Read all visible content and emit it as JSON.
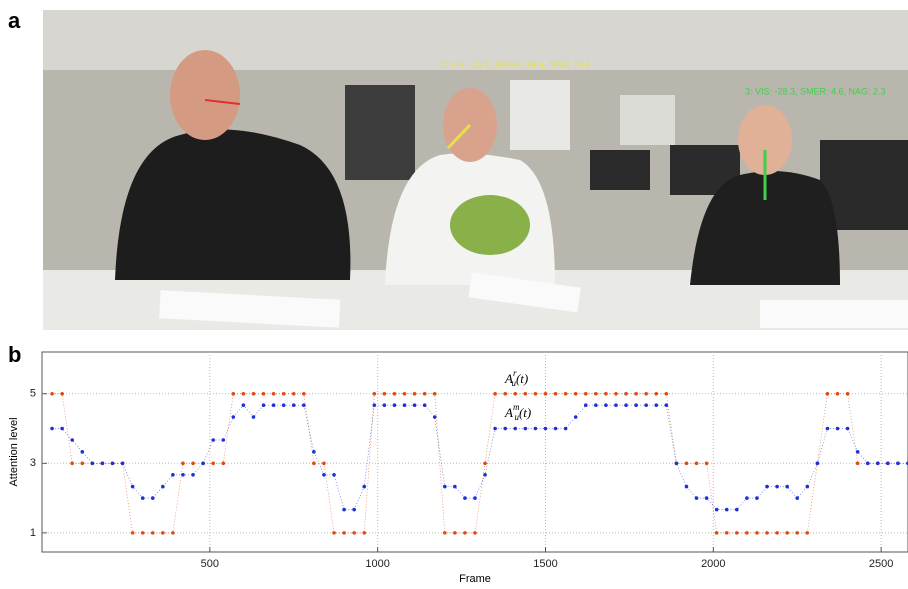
{
  "panel_labels": [
    "a",
    "b"
  ],
  "photo": {
    "overlays": [
      {
        "text": "2: VIS: -13.2,  SMER: 14.6,  NAG: 10.6",
        "color": "#e6e04a"
      },
      {
        "text": "3: VIS: -28.3,  SMER: 4.6,  NAG: 2.3",
        "color": "#3ed04a"
      }
    ]
  },
  "chart_data": {
    "type": "scatter",
    "xlabel": "Frame",
    "ylabel": "Attention level",
    "xlim": [
      0,
      2580
    ],
    "ylim": [
      0.45,
      6.2
    ],
    "xticks": [
      500,
      1000,
      1500,
      2000,
      2500
    ],
    "yticks": [
      1,
      3,
      5
    ],
    "grid": true,
    "x": [
      30,
      60,
      90,
      120,
      150,
      180,
      210,
      240,
      270,
      300,
      330,
      360,
      390,
      420,
      450,
      480,
      510,
      540,
      570,
      600,
      630,
      660,
      690,
      720,
      750,
      780,
      810,
      840,
      870,
      900,
      930,
      960,
      990,
      1020,
      1050,
      1080,
      1110,
      1140,
      1170,
      1200,
      1230,
      1260,
      1290,
      1320,
      1350,
      1380,
      1410,
      1440,
      1470,
      1500,
      1530,
      1560,
      1590,
      1620,
      1650,
      1680,
      1710,
      1740,
      1770,
      1800,
      1830,
      1860,
      1890,
      1920,
      1950,
      1980,
      2010,
      2040,
      2070,
      2100,
      2130,
      2160,
      2190,
      2220,
      2250,
      2280,
      2310,
      2340,
      2370,
      2400,
      2430,
      2460,
      2490,
      2520,
      2550,
      2580
    ],
    "series": [
      {
        "color": "#e04a10",
        "values": [
          5,
          5,
          3,
          3,
          3,
          3,
          3,
          3,
          1,
          1,
          1,
          1,
          1,
          3,
          3,
          3,
          3,
          3,
          5,
          5,
          5,
          5,
          5,
          5,
          5,
          5,
          3,
          3,
          1,
          1,
          1,
          1,
          5,
          5,
          5,
          5,
          5,
          5,
          5,
          1,
          1,
          1,
          1,
          3,
          5,
          5,
          5,
          5,
          5,
          5,
          5,
          5,
          5,
          5,
          5,
          5,
          5,
          5,
          5,
          5,
          5,
          5,
          3,
          3,
          3,
          3,
          1,
          1,
          1,
          1,
          1,
          1,
          1,
          1,
          1,
          1,
          3,
          5,
          5,
          5,
          3,
          3,
          3,
          3,
          3,
          3
        ]
      },
      {
        "color": "#2030d8",
        "values": [
          4,
          4,
          3.67,
          3.33,
          3,
          3,
          3,
          3,
          2.33,
          2,
          2,
          2.33,
          2.67,
          2.67,
          2.67,
          3,
          3.67,
          3.67,
          4.33,
          4.67,
          4.33,
          4.67,
          4.67,
          4.67,
          4.67,
          4.67,
          3.33,
          2.67,
          2.67,
          1.67,
          1.67,
          2.33,
          4.67,
          4.67,
          4.67,
          4.67,
          4.67,
          4.67,
          4.33,
          2.33,
          2.33,
          2,
          2,
          2.67,
          4,
          4,
          4,
          4,
          4,
          4,
          4,
          4,
          4.33,
          4.67,
          4.67,
          4.67,
          4.67,
          4.67,
          4.67,
          4.67,
          4.67,
          4.67,
          3,
          2.33,
          2,
          2,
          1.67,
          1.67,
          1.67,
          2,
          2,
          2.33,
          2.33,
          2.33,
          2,
          2.33,
          3,
          4,
          4,
          4,
          3.33,
          3,
          3,
          3,
          3,
          3
        ]
      }
    ],
    "annotations": [
      {
        "base": "A",
        "sub": "u",
        "sup": "r",
        "tail": "(t)"
      },
      {
        "base": "A",
        "sub": "u",
        "sup": "m",
        "tail": "(t)"
      }
    ]
  }
}
